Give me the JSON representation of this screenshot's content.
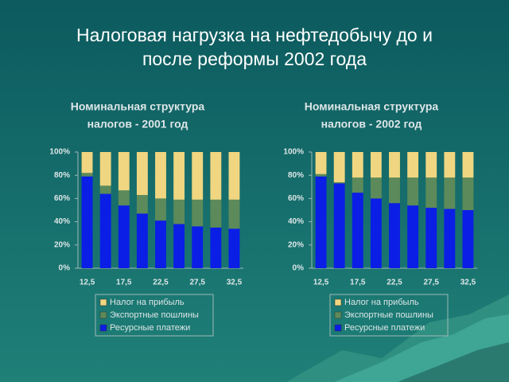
{
  "title": [
    "Налоговая нагрузка на нефтедобычу до и",
    "после реформы 2002 года"
  ],
  "chart_data": [
    {
      "type": "stacked_bar",
      "title": [
        "Номинальная структура",
        "налогов - 2001 год"
      ],
      "categories": [
        "12,5",
        null,
        "17,5",
        null,
        "22,5",
        null,
        "27,5",
        null,
        "32,5"
      ],
      "series": [
        {
          "name": "Ресурсные платежи",
          "color": "#0a1ee6",
          "values": [
            79,
            64,
            54,
            47,
            41,
            38,
            36,
            35,
            34
          ]
        },
        {
          "name": "Экспортные пошлины",
          "color": "#5d8a5a",
          "values": [
            3,
            7,
            13,
            16,
            19,
            21,
            23,
            24,
            25
          ]
        },
        {
          "name": "Налог на прибыль",
          "color": "#f0d680",
          "values": [
            18,
            29,
            33,
            37,
            40,
            41,
            41,
            41,
            41
          ]
        }
      ],
      "ylim": [
        0,
        100
      ],
      "yticks": [
        {
          "value": 0,
          "label": "0%"
        },
        {
          "value": 20,
          "label": "20%"
        },
        {
          "value": 40,
          "label": "40%"
        },
        {
          "value": 60,
          "label": "60%"
        },
        {
          "value": 80,
          "label": "80%"
        },
        {
          "value": 100,
          "label": "100%"
        }
      ]
    },
    {
      "type": "stacked_bar",
      "title": [
        "Номинальная структура",
        "налогов - 2002 год"
      ],
      "categories": [
        "12,5",
        null,
        "17,5",
        null,
        "22,5",
        null,
        "27,5",
        null,
        "32,5"
      ],
      "series": [
        {
          "name": "Ресурсные платежи",
          "color": "#0a1ee6",
          "values": [
            79,
            73,
            65,
            60,
            56,
            54,
            52,
            51,
            50
          ]
        },
        {
          "name": "Экспортные пошлины",
          "color": "#5d8a5a",
          "values": [
            2,
            1,
            13,
            18,
            22,
            24,
            26,
            27,
            28
          ]
        },
        {
          "name": "Налог на прибыль",
          "color": "#f0d680",
          "values": [
            19,
            26,
            22,
            22,
            22,
            22,
            22,
            22,
            22
          ]
        }
      ],
      "ylim": [
        0,
        100
      ],
      "yticks": [
        {
          "value": 0,
          "label": "0%"
        },
        {
          "value": 20,
          "label": "20%"
        },
        {
          "value": 40,
          "label": "40%"
        },
        {
          "value": 60,
          "label": "60%"
        },
        {
          "value": 80,
          "label": "80%"
        },
        {
          "value": 100,
          "label": "100%"
        }
      ]
    }
  ]
}
